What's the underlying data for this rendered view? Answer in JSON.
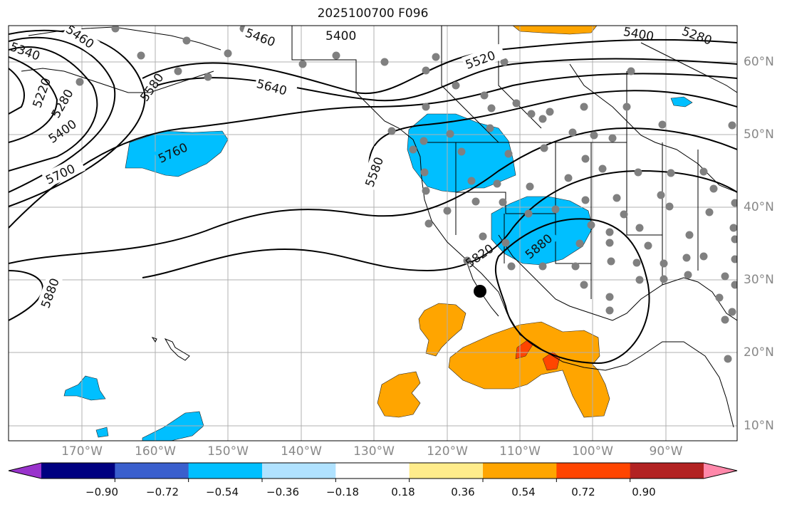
{
  "title": "2025100700 F096",
  "lon_labels": [
    "170°W",
    "160°W",
    "150°W",
    "140°W",
    "130°W",
    "120°W",
    "110°W",
    "100°W",
    "90°W"
  ],
  "lat_labels": [
    "60°N",
    "50°N",
    "40°N",
    "30°N",
    "20°N",
    "10°N"
  ],
  "contour_labels": [
    "5400",
    "5460",
    "5340",
    "5280",
    "5400",
    "5220",
    "5280",
    "5400",
    "5580",
    "5460",
    "5640",
    "5520",
    "5700",
    "5760",
    "5580",
    "5820",
    "5880",
    "5880"
  ],
  "colorbar": {
    "tick_labels": [
      "−0.90",
      "−0.72",
      "−0.54",
      "−0.36",
      "−0.18",
      "0.18",
      "0.36",
      "0.54",
      "0.72",
      "0.90"
    ],
    "colors": [
      "#9933cc",
      "#000080",
      "#3a5fcd",
      "#00bfff",
      "#b0e2ff",
      "#ffffff",
      "#ffec8b",
      "#ffa500",
      "#ff4500",
      "#b22222",
      "#ff88aa"
    ]
  },
  "colors": {
    "cold": "#00bfff",
    "warm": "#ffa500",
    "hot": "#ff4500",
    "station": "#808080",
    "grid": "#b0b0b0"
  }
}
